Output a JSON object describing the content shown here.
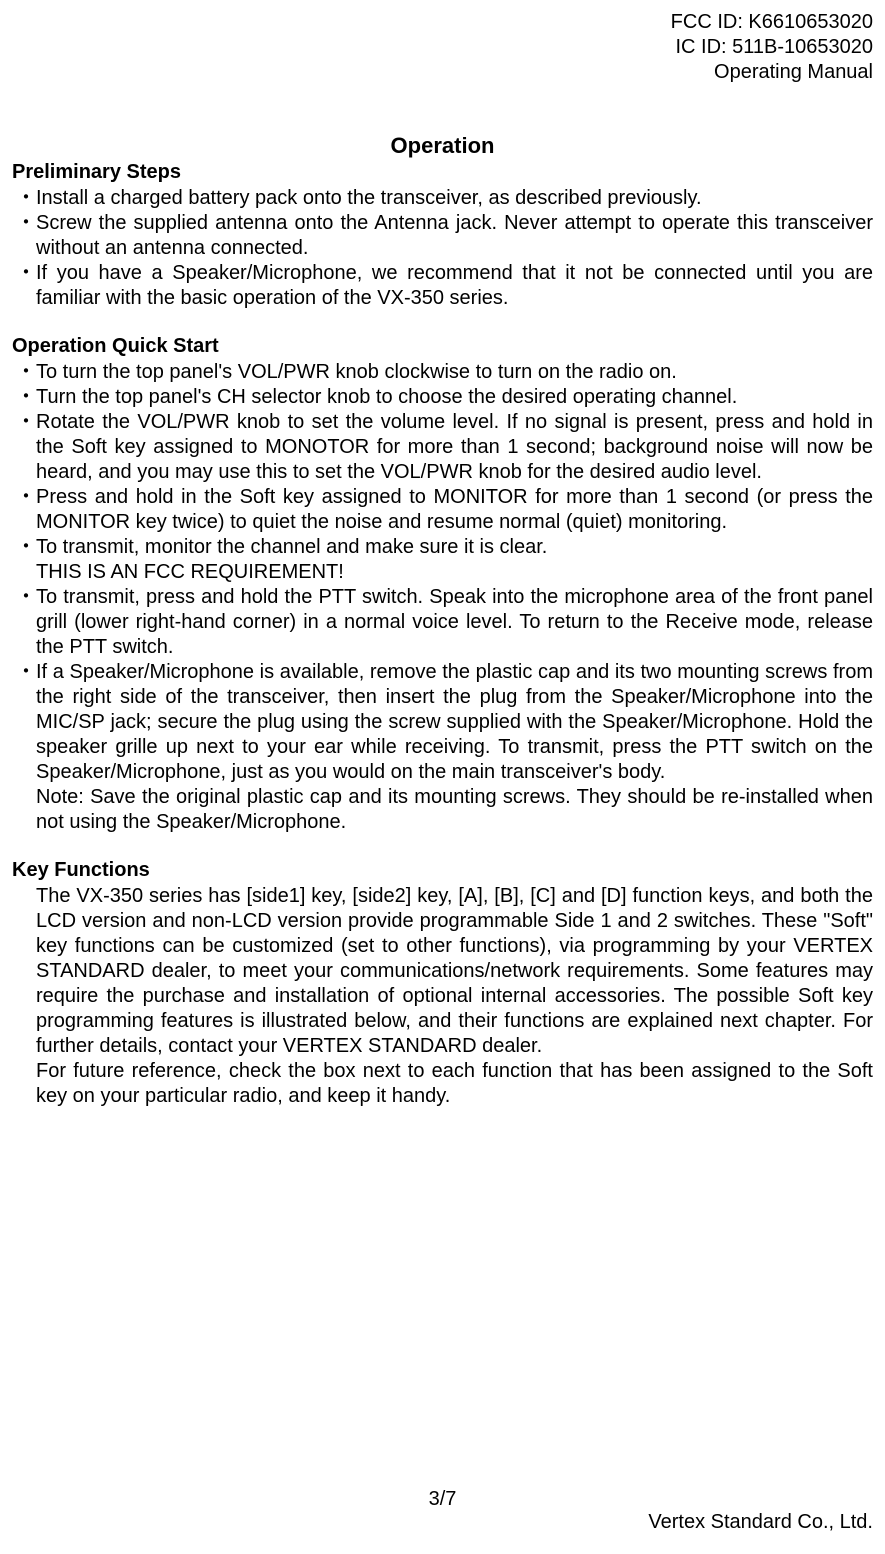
{
  "header": {
    "fcc_id": "FCC ID: K6610653020",
    "ic_id": "IC ID: 511B-10653020",
    "doc_type": "Operating Manual"
  },
  "title": "Operation",
  "sections": {
    "prelim": {
      "heading": "Preliminary Steps",
      "items": [
        "Install a charged battery pack onto the transceiver, as described previously.",
        "Screw the supplied antenna onto the Antenna jack. Never attempt to operate this transceiver without an antenna connected.",
        "If you have a Speaker/Microphone, we recommend that it not be connected until you are familiar with the basic operation of the VX-350 series."
      ]
    },
    "quickstart": {
      "heading": "Operation Quick Start",
      "items": [
        "To turn the top panel's VOL/PWR knob clockwise to turn on the radio on.",
        "Turn the top panel's CH selector knob to choose the desired operating channel.",
        "Rotate the VOL/PWR knob to set the volume level. If no signal is present, press and hold in the Soft key assigned to MONOTOR for more than 1 second; background noise will now be heard, and you may use this to set the VOL/PWR knob for the desired audio level.",
        "Press and hold in the Soft key assigned to MONITOR for more than 1 second (or press the MONITOR key twice) to quiet the noise and resume normal (quiet) monitoring.",
        "To transmit, monitor the channel and make sure it is clear.",
        "To transmit, press and hold the PTT switch. Speak into the microphone area of the front panel grill (lower right-hand corner) in a normal voice level. To return to the Receive mode, release the PTT switch.",
        "If a Speaker/Microphone is available, remove the plastic cap and its two mounting screws from the right side of the transceiver, then insert the plug from the Speaker/Microphone into the MIC/SP jack; secure the plug using the screw supplied with the Speaker/Microphone. Hold the speaker grille up next to your ear while receiving. To transmit, press the PTT switch on the Speaker/Microphone, just as you would on the main transceiver's body."
      ],
      "fcc_req": "THIS IS AN FCC REQUIREMENT!",
      "note": "Note: Save the original plastic cap and its mounting screws. They should be re-installed when not using the Speaker/Microphone."
    },
    "keyfunc": {
      "heading": "Key Functions",
      "para1": "The VX-350 series has [side1] key, [side2] key, [A], [B], [C] and [D] function keys, and both the LCD version and non-LCD version provide programmable Side 1 and 2 switches. These \"Soft\" key functions can be customized (set to other functions), via programming by your VERTEX STANDARD dealer, to meet your communications/network requirements. Some features may require the purchase and installation of optional internal accessories. The possible Soft key programming features is illustrated below, and their functions are explained next chapter. For further details, contact your VERTEX STANDARD dealer.",
      "para2": "For future reference, check the box next to each function that has been assigned to the Soft key on your particular radio, and keep it handy."
    }
  },
  "footer": {
    "page": "3/7",
    "company": "Vertex Standard Co., Ltd."
  },
  "bullet_char": "・"
}
